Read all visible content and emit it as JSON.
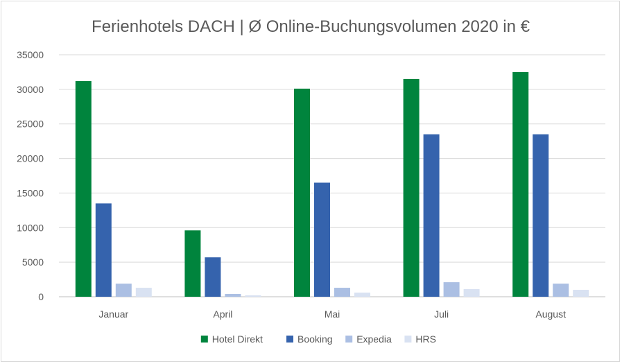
{
  "chart_data": {
    "type": "bar",
    "title": "Ferienhotels DACH | Ø Online-Buchungsvolumen  2020 in €",
    "categories": [
      "Januar",
      "April",
      "Mai",
      "Juli",
      "August"
    ],
    "series": [
      {
        "name": "Hotel Direkt",
        "color": "#00843d",
        "values": [
          31200,
          9600,
          30100,
          31500,
          32500
        ]
      },
      {
        "name": "Booking",
        "color": "#3563ad",
        "values": [
          13500,
          5700,
          16500,
          23500,
          23500
        ]
      },
      {
        "name": "Expedia",
        "color": "#abbfe3",
        "values": [
          1900,
          400,
          1300,
          2100,
          1900
        ]
      },
      {
        "name": "HRS",
        "color": "#d9e2f2",
        "values": [
          1300,
          200,
          600,
          1100,
          1000
        ]
      }
    ],
    "ylim": [
      0,
      35000
    ],
    "yticks": [
      0,
      5000,
      10000,
      15000,
      20000,
      25000,
      30000,
      35000
    ],
    "xlabel": "",
    "ylabel": "",
    "grid": true,
    "legend": "bottom"
  }
}
